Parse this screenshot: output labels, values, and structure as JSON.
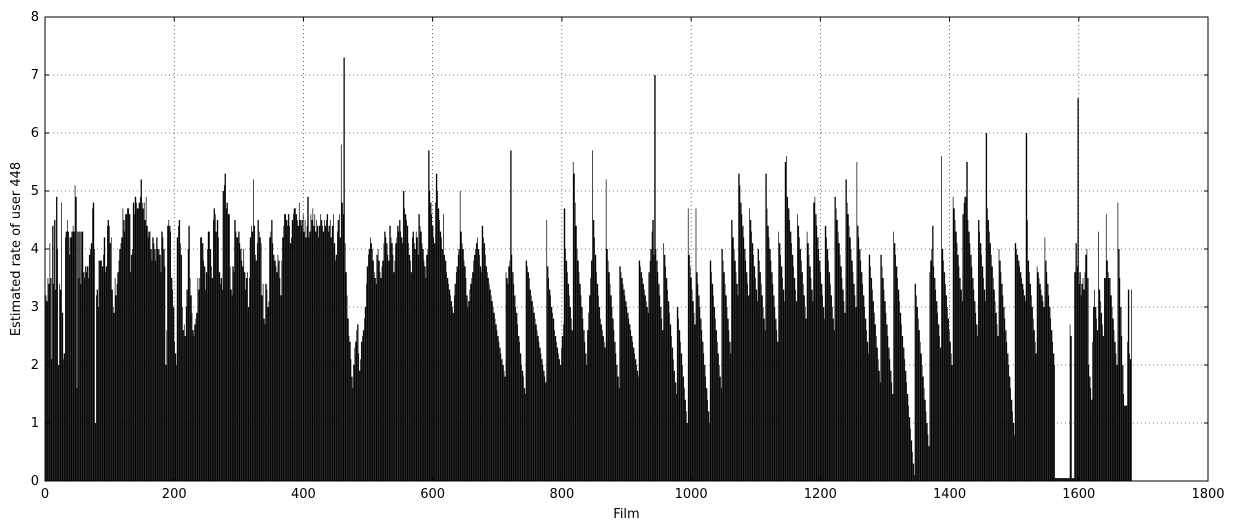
{
  "chart_data": {
    "type": "bar",
    "title": "",
    "xlabel": "Film",
    "ylabel": "Estimated rate of user 448",
    "xlim": [
      0,
      1800
    ],
    "ylim": [
      0,
      8
    ],
    "xticks": [
      0,
      200,
      400,
      600,
      800,
      1000,
      1200,
      1400,
      1600,
      1800
    ],
    "yticks": [
      0,
      1,
      2,
      3,
      4,
      5,
      6,
      7,
      8
    ],
    "grid": true,
    "bar_color": "#000000",
    "n_films": 1682,
    "values": [
      3.2,
      3.1,
      3.5,
      3.4,
      4.1,
      3.5,
      2.1,
      4.4,
      3.4,
      4.5,
      3.3,
      4.9,
      4.0,
      2.0,
      3.4,
      3.3,
      4.8,
      2.9,
      2.1,
      2.2,
      4.2,
      4.3,
      4.5,
      4.3,
      3.9,
      4.2,
      4.2,
      4.3,
      4.4,
      4.3,
      5.1,
      4.9,
      1.6,
      4.3,
      3.5,
      4.3,
      3.4,
      4.3,
      4.3,
      3.6,
      3.5,
      3.7,
      3.6,
      3.7,
      3.5,
      3.9,
      4.0,
      4.1,
      4.7,
      4.8,
      4.0,
      1.0,
      3.2,
      3.3,
      3.0,
      3.8,
      3.8,
      3.8,
      3.7,
      3.9,
      4.2,
      3.6,
      3.7,
      4.4,
      4.5,
      4.4,
      4.1,
      4.2,
      3.3,
      3.0,
      2.9,
      3.5,
      3.2,
      3.4,
      3.6,
      3.8,
      4.0,
      4.1,
      4.2,
      4.7,
      4.5,
      4.3,
      4.6,
      4.6,
      4.7,
      4.7,
      4.6,
      3.6,
      3.9,
      4.0,
      4.8,
      4.6,
      4.9,
      4.8,
      4.7,
      4.7,
      4.8,
      4.9,
      5.2,
      4.8,
      4.7,
      4.8,
      4.5,
      4.9,
      4.4,
      4.2,
      4.3,
      4.3,
      4.0,
      3.8,
      4.2,
      4.1,
      4.0,
      3.8,
      4.2,
      4.0,
      4.0,
      3.9,
      3.6,
      4.3,
      4.2,
      4.0,
      3.7,
      2.0,
      2.6,
      4.4,
      4.5,
      4.4,
      4.3,
      3.5,
      3.3,
      3.0,
      2.4,
      2.2,
      2.0,
      4.2,
      4.4,
      4.5,
      4.1,
      3.9,
      3.0,
      2.6,
      2.7,
      2.5,
      3.0,
      3.3,
      4.0,
      4.4,
      3.5,
      3.2,
      2.9,
      2.6,
      2.5,
      2.7,
      2.8,
      2.9,
      3.5,
      3.3,
      3.5,
      4.2,
      4.2,
      4.1,
      3.8,
      3.7,
      3.3,
      3.6,
      4.0,
      4.3,
      4.3,
      4.0,
      3.7,
      3.5,
      4.5,
      4.7,
      4.6,
      4.3,
      4.5,
      4.2,
      3.6,
      3.4,
      3.5,
      3.3,
      5.0,
      5.1,
      5.3,
      4.7,
      4.8,
      4.6,
      4.6,
      3.7,
      3.3,
      3.2,
      3.7,
      3.6,
      4.5,
      4.3,
      4.2,
      4.2,
      4.3,
      4.1,
      4.0,
      3.8,
      3.7,
      4.0,
      3.6,
      3.3,
      3.5,
      3.6,
      3.0,
      3.5,
      4.2,
      4.4,
      4.3,
      5.2,
      4.4,
      3.9,
      3.8,
      4.1,
      4.5,
      4.3,
      4.2,
      4.1,
      3.2,
      3.4,
      2.8,
      2.7,
      3.4,
      3.3,
      3.0,
      3.1,
      4.2,
      4.3,
      4.5,
      4.1,
      3.9,
      3.8,
      3.7,
      3.6,
      3.9,
      3.8,
      3.5,
      3.2,
      3.8,
      4.2,
      4.4,
      4.6,
      4.6,
      4.5,
      4.4,
      4.6,
      4.4,
      4.1,
      4.2,
      4.5,
      4.6,
      4.7,
      4.7,
      4.6,
      4.5,
      4.4,
      4.8,
      4.5,
      4.4,
      4.5,
      4.6,
      4.3,
      4.5,
      4.2,
      4.4,
      4.9,
      4.2,
      4.3,
      4.6,
      4.5,
      4.7,
      4.4,
      4.6,
      4.3,
      4.5,
      4.4,
      4.2,
      4.4,
      4.6,
      4.5,
      4.4,
      4.3,
      4.5,
      4.4,
      4.5,
      4.6,
      4.3,
      4.4,
      4.5,
      4.2,
      4.4,
      4.6,
      4.1,
      3.8,
      3.9,
      4.3,
      4.5,
      4.6,
      4.2,
      5.8,
      4.8,
      4.6,
      7.3,
      4.1,
      3.6,
      3.2,
      2.8,
      2.5,
      2.4,
      2.1,
      1.8,
      1.6,
      2.0,
      2.3,
      2.4,
      2.6,
      2.7,
      2.2,
      1.9,
      2.1,
      2.4,
      2.5,
      2.6,
      2.8,
      3.0,
      3.4,
      3.7,
      3.9,
      4.0,
      4.2,
      4.1,
      4.0,
      3.8,
      3.6,
      3.5,
      3.4,
      3.9,
      4.0,
      3.8,
      3.6,
      3.5,
      3.7,
      3.8,
      4.1,
      4.3,
      4.2,
      4.1,
      3.9,
      3.8,
      4.4,
      4.2,
      4.1,
      3.9,
      3.6,
      3.8,
      4.1,
      4.2,
      4.4,
      4.3,
      4.5,
      4.3,
      4.2,
      4.1,
      5.0,
      4.7,
      4.6,
      4.5,
      4.4,
      4.1,
      3.9,
      3.8,
      3.6,
      4.2,
      4.3,
      4.1,
      4.0,
      4.3,
      4.2,
      3.9,
      4.6,
      4.4,
      4.3,
      4.1,
      4.0,
      3.8,
      3.7,
      3.5,
      3.9,
      4.0,
      5.7,
      5.0,
      4.8,
      4.6,
      4.4,
      4.2,
      4.1,
      4.8,
      5.3,
      5.0,
      4.7,
      4.5,
      4.3,
      4.2,
      4.0,
      4.6,
      3.9,
      3.8,
      3.6,
      3.5,
      3.4,
      3.3,
      3.2,
      3.1,
      3.0,
      2.9,
      3.2,
      3.4,
      3.6,
      3.7,
      3.9,
      4.0,
      5.0,
      4.3,
      4.1,
      4.0,
      3.8,
      3.7,
      3.5,
      3.2,
      3.0,
      3.1,
      3.3,
      3.4,
      3.5,
      3.6,
      3.8,
      3.9,
      4.0,
      4.1,
      4.2,
      4.0,
      3.9,
      3.7,
      3.6,
      4.4,
      4.2,
      4.1,
      3.9,
      3.7,
      3.6,
      3.5,
      3.4,
      3.3,
      3.2,
      3.1,
      3.0,
      2.9,
      2.8,
      2.7,
      2.6,
      2.5,
      2.4,
      2.3,
      2.2,
      2.1,
      2.0,
      1.9,
      1.8,
      3.6,
      3.5,
      3.4,
      3.7,
      3.8,
      5.7,
      3.9,
      3.6,
      3.4,
      3.2,
      3.0,
      2.9,
      2.7,
      2.5,
      2.4,
      2.2,
      2.0,
      1.9,
      1.8,
      1.6,
      1.5,
      3.8,
      3.7,
      3.6,
      3.5,
      3.3,
      3.2,
      3.1,
      3.0,
      2.9,
      2.8,
      2.7,
      2.6,
      2.5,
      2.4,
      2.3,
      2.2,
      2.1,
      2.0,
      1.9,
      1.8,
      1.7,
      4.5,
      3.7,
      3.5,
      3.3,
      3.2,
      3.0,
      2.9,
      2.8,
      2.6,
      2.5,
      2.4,
      2.3,
      2.2,
      2.1,
      2.0,
      2.3,
      2.5,
      2.7,
      4.7,
      4.0,
      3.8,
      3.6,
      3.4,
      3.2,
      3.0,
      2.8,
      2.6,
      5.5,
      5.3,
      4.8,
      4.4,
      4.0,
      3.8,
      3.6,
      3.4,
      3.2,
      3.0,
      2.8,
      2.6,
      2.4,
      2.2,
      2.0,
      2.6,
      2.9,
      3.2,
      3.5,
      3.8,
      5.7,
      4.5,
      4.2,
      3.9,
      3.6,
      3.4,
      3.2,
      3.0,
      2.8,
      2.7,
      2.6,
      2.5,
      2.4,
      2.3,
      5.2,
      4.0,
      3.8,
      3.6,
      3.4,
      3.2,
      3.0,
      2.8,
      2.6,
      2.4,
      2.2,
      2.0,
      1.8,
      1.6,
      3.7,
      3.6,
      3.5,
      3.4,
      3.3,
      3.2,
      3.1,
      3.0,
      2.9,
      2.8,
      2.7,
      2.6,
      2.5,
      2.4,
      2.3,
      2.2,
      2.1,
      2.0,
      1.9,
      1.8,
      3.8,
      3.7,
      3.6,
      3.5,
      3.4,
      3.3,
      3.2,
      3.1,
      3.0,
      2.9,
      3.6,
      3.8,
      4.0,
      4.3,
      4.5,
      3.9,
      7.0,
      4.0,
      3.8,
      3.6,
      3.4,
      3.2,
      3.0,
      2.8,
      2.6,
      4.1,
      3.9,
      3.7,
      3.5,
      3.3,
      3.1,
      2.9,
      2.7,
      2.5,
      2.3,
      2.1,
      1.9,
      1.7,
      1.5,
      3.0,
      2.8,
      2.6,
      2.4,
      2.2,
      2.0,
      1.8,
      1.6,
      1.4,
      1.2,
      1.0,
      4.7,
      3.9,
      3.7,
      3.5,
      3.3,
      3.1,
      2.9,
      2.7,
      4.7,
      3.6,
      3.4,
      3.2,
      3.0,
      2.8,
      2.6,
      2.4,
      2.2,
      2.0,
      1.8,
      1.6,
      1.4,
      1.2,
      1.0,
      3.8,
      3.6,
      3.4,
      3.2,
      3.0,
      2.8,
      2.6,
      2.4,
      2.2,
      2.0,
      1.8,
      1.6,
      4.0,
      3.8,
      3.6,
      3.4,
      3.2,
      3.0,
      2.8,
      2.6,
      2.4,
      2.2,
      4.5,
      4.2,
      4.0,
      3.8,
      3.6,
      3.4,
      3.2,
      5.3,
      5.1,
      4.8,
      4.6,
      4.4,
      4.2,
      4.0,
      3.8,
      3.6,
      3.4,
      3.2,
      4.7,
      4.5,
      4.3,
      4.1,
      3.9,
      3.7,
      3.5,
      3.3,
      3.1,
      4.0,
      3.8,
      3.6,
      3.4,
      3.2,
      3.0,
      2.8,
      2.6,
      5.3,
      4.7,
      4.4,
      4.2,
      4.0,
      3.8,
      3.6,
      3.4,
      3.2,
      3.0,
      2.8,
      2.6,
      2.4,
      4.3,
      4.1,
      3.9,
      3.7,
      3.5,
      3.3,
      3.1,
      5.5,
      5.6,
      4.9,
      4.7,
      4.5,
      4.3,
      4.1,
      3.9,
      3.7,
      3.5,
      3.3,
      3.1,
      4.6,
      4.4,
      4.2,
      4.0,
      3.8,
      3.6,
      3.4,
      3.2,
      3.0,
      2.8,
      4.3,
      4.1,
      3.9,
      3.7,
      3.5,
      3.3,
      3.1,
      4.8,
      4.9,
      4.6,
      4.4,
      4.2,
      4.0,
      3.8,
      3.6,
      3.4,
      3.2,
      3.0,
      2.8,
      4.4,
      4.2,
      4.0,
      3.8,
      3.6,
      3.4,
      3.2,
      3.0,
      2.8,
      2.6,
      4.9,
      4.7,
      4.5,
      4.3,
      4.1,
      3.9,
      3.7,
      3.5,
      3.3,
      3.1,
      2.9,
      5.2,
      4.8,
      4.6,
      4.4,
      4.2,
      4.0,
      3.8,
      3.6,
      3.4,
      3.2,
      3.0,
      5.5,
      4.4,
      4.2,
      4.0,
      3.8,
      3.6,
      3.4,
      3.2,
      3.0,
      2.8,
      2.6,
      2.4,
      2.2,
      3.9,
      3.7,
      3.5,
      3.3,
      3.1,
      2.9,
      2.7,
      2.5,
      2.3,
      2.1,
      1.9,
      1.7,
      3.9,
      3.7,
      3.5,
      3.3,
      3.1,
      2.9,
      2.7,
      2.5,
      2.3,
      2.1,
      1.9,
      1.7,
      1.5,
      4.3,
      4.1,
      3.9,
      3.7,
      3.5,
      3.3,
      3.1,
      2.9,
      2.7,
      2.5,
      2.3,
      2.1,
      1.9,
      1.7,
      1.5,
      1.3,
      1.1,
      0.9,
      0.7,
      0.5,
      0.3,
      0.1,
      3.4,
      3.2,
      3.0,
      2.8,
      2.6,
      2.4,
      2.2,
      2.0,
      1.8,
      1.6,
      1.4,
      1.2,
      1.0,
      0.8,
      0.6,
      3.6,
      3.8,
      4.0,
      4.4,
      3.7,
      3.5,
      3.3,
      3.1,
      2.9,
      2.7,
      2.5,
      2.3,
      5.6,
      4.0,
      3.8,
      3.6,
      3.4,
      3.2,
      3.0,
      2.8,
      2.6,
      2.4,
      2.2,
      2.0,
      4.9,
      4.7,
      4.5,
      4.3,
      4.1,
      3.9,
      3.7,
      3.5,
      3.3,
      3.1,
      4.6,
      4.8,
      4.9,
      4.9,
      5.5,
      4.5,
      4.3,
      4.1,
      3.9,
      3.7,
      3.5,
      3.3,
      3.1,
      2.9,
      2.7,
      2.5,
      4.5,
      4.3,
      4.1,
      3.9,
      3.7,
      3.5,
      3.3,
      3.1,
      6.0,
      4.7,
      4.5,
      4.3,
      4.1,
      3.9,
      3.7,
      3.5,
      3.3,
      3.1,
      2.9,
      2.7,
      2.5,
      4.0,
      3.8,
      3.6,
      3.4,
      3.2,
      3.0,
      2.8,
      2.6,
      2.4,
      2.2,
      2.0,
      1.8,
      1.6,
      1.4,
      1.2,
      1.0,
      0.8,
      4.1,
      4.0,
      3.9,
      3.8,
      3.7,
      3.6,
      3.5,
      3.4,
      3.3,
      3.2,
      3.1,
      6.0,
      4.5,
      3.8,
      3.6,
      3.4,
      3.2,
      3.0,
      2.8,
      2.6,
      2.4,
      2.2,
      3.7,
      3.6,
      3.5,
      3.4,
      3.3,
      3.2,
      3.1,
      3.0,
      4.2,
      3.8,
      3.6,
      3.4,
      3.2,
      3.0,
      2.8,
      2.6,
      2.4,
      2.2,
      2.0,
      0.05,
      0.05,
      0.05,
      0.05,
      0.05,
      0.05,
      0.05,
      0.05,
      0.05,
      0.05,
      0.05,
      0.05,
      0.05,
      0.05,
      0.05,
      2.7,
      2.5,
      0.05,
      0.05,
      0.05,
      3.6,
      4.1,
      3.7,
      6.6,
      3.4,
      3.6,
      3.2,
      3.4,
      3.5,
      3.3,
      3.6,
      3.9,
      4.0,
      3.5,
      2.0,
      1.8,
      1.6,
      1.4,
      2.4,
      3.0,
      3.3,
      3.0,
      2.8,
      2.6,
      4.3,
      3.3,
      3.1,
      2.9,
      2.7,
      2.5,
      3.5,
      3.5,
      4.6,
      3.8,
      3.6,
      3.5,
      3.5,
      3.2,
      3.0,
      2.8,
      2.6,
      2.4,
      2.2,
      2.0,
      4.8,
      4.0,
      3.5,
      3.0,
      2.5,
      2.0,
      1.5,
      1.3,
      1.3,
      1.3,
      2.4,
      3.3,
      2.2,
      2.1,
      3.3
    ]
  }
}
